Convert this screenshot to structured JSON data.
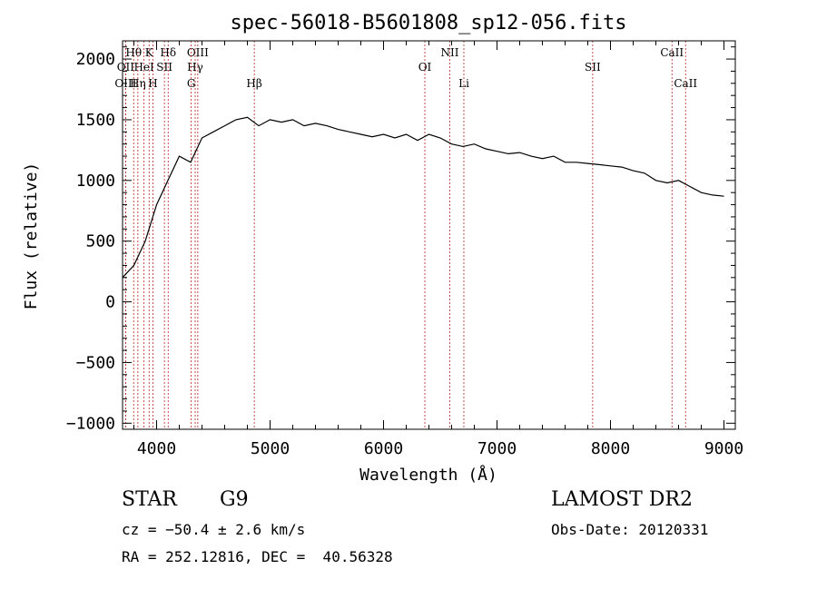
{
  "chart_data": {
    "type": "line",
    "title": "spec-56018-B5601808_sp12-056.fits",
    "xlabel": "Wavelength (Å)",
    "ylabel": "Flux (relative)",
    "xlim": [
      3700,
      9100
    ],
    "ylim": [
      -1050,
      2150
    ],
    "xticks": [
      4000,
      5000,
      6000,
      7000,
      8000,
      9000
    ],
    "yticks": [
      -1000,
      -500,
      0,
      500,
      1000,
      1500,
      2000
    ],
    "xtick_labels": [
      "4000",
      "5000",
      "6000",
      "7000",
      "8000",
      "9000"
    ],
    "ytick_labels": [
      "−1000",
      "−500",
      "0",
      "500",
      "1000",
      "1500",
      "2000"
    ],
    "grid": false,
    "series": [
      {
        "x": [
          3700,
          3800,
          3900,
          4000,
          4100,
          4200,
          4300,
          4400,
          4500,
          4600,
          4700,
          4800,
          4900,
          5000,
          5100,
          5200,
          5300,
          5400,
          5500,
          5600,
          5700,
          5800,
          5900,
          6000,
          6100,
          6200,
          6300,
          6400,
          6500,
          6600,
          6700,
          6800,
          6900,
          7000,
          7100,
          7200,
          7300,
          7400,
          7500,
          7600,
          7700,
          7800,
          7900,
          8000,
          8100,
          8200,
          8300,
          8400,
          8500,
          8600,
          8700,
          8800,
          8900,
          9000
        ],
        "y": [
          200,
          300,
          500,
          800,
          1000,
          1200,
          1150,
          1350,
          1400,
          1450,
          1500,
          1520,
          1450,
          1500,
          1480,
          1500,
          1450,
          1470,
          1450,
          1420,
          1400,
          1380,
          1360,
          1380,
          1350,
          1380,
          1330,
          1380,
          1350,
          1300,
          1280,
          1300,
          1260,
          1240,
          1220,
          1230,
          1200,
          1180,
          1200,
          1150,
          1150,
          1140,
          1130,
          1120,
          1110,
          1080,
          1060,
          1000,
          980,
          1000,
          950,
          900,
          880,
          870
        ]
      }
    ],
    "line_markers": [
      {
        "label": "Hθ",
        "x": 3798,
        "row": 1
      },
      {
        "label": "K",
        "x": 3934,
        "row": 1
      },
      {
        "label": "Hδ",
        "x": 4102,
        "row": 1
      },
      {
        "label": "OIII",
        "x": 4363,
        "row": 1
      },
      {
        "label": "NII",
        "x": 6584,
        "row": 1
      },
      {
        "label": "CaII",
        "x": 8542,
        "row": 1
      },
      {
        "label": "OII",
        "x": 3727,
        "row": 2
      },
      {
        "label": "HeI",
        "x": 3889,
        "row": 2
      },
      {
        "label": "SII",
        "x": 4069,
        "row": 2
      },
      {
        "label": "Hγ",
        "x": 4340,
        "row": 2
      },
      {
        "label": "OI",
        "x": 6364,
        "row": 2
      },
      {
        "label": "SII",
        "x": 7843,
        "row": 2
      },
      {
        "label": "OIII",
        "x": 3727,
        "row": 3
      },
      {
        "label": "Hη",
        "x": 3835,
        "row": 3
      },
      {
        "label": "H",
        "x": 3968,
        "row": 3
      },
      {
        "label": "G",
        "x": 4305,
        "row": 3
      },
      {
        "label": "Hβ",
        "x": 4861,
        "row": 3
      },
      {
        "label": "Li",
        "x": 6708,
        "row": 3
      },
      {
        "label": "CaII",
        "x": 8662,
        "row": 3
      }
    ]
  },
  "info": {
    "object_class": "STAR",
    "subclass": "G9",
    "survey": "LAMOST DR2",
    "cz": "cz = −50.4 ± 2.6 km/s",
    "obs_date": "Obs-Date: 20120331",
    "coords": "RA = 252.12816, DEC =  40.56328"
  },
  "colors": {
    "spectrum": "#000000",
    "marker_line": "#b22222",
    "text": "#000000"
  }
}
